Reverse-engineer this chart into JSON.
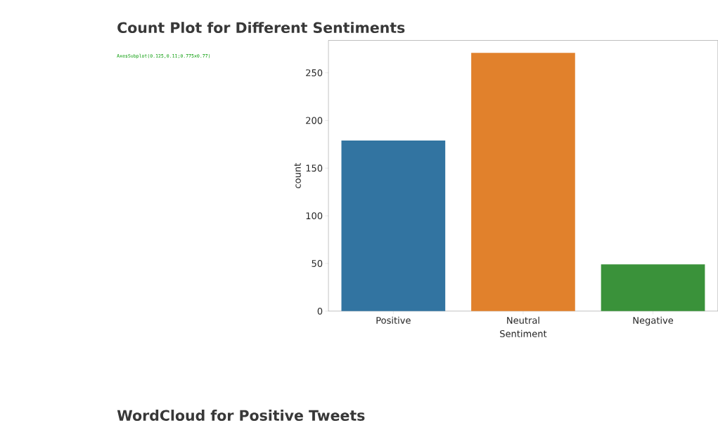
{
  "chart_data": {
    "type": "bar",
    "title": "Count Plot for Different Sentiments",
    "annotations": [
      "AxesSubplot(0.125,0.11;0.775x0.77)",
      "WordCloud for Positive Tweets"
    ],
    "xlabel": "Sentiment",
    "ylabel": "count",
    "categories": [
      "Positive",
      "Neutral",
      "Negative"
    ],
    "values": [
      179,
      271,
      49
    ],
    "colors": [
      "#3274a1",
      "#e1812c",
      "#3a923a"
    ],
    "ylim": [
      0,
      284
    ],
    "yticks": [
      0,
      50,
      100,
      150,
      200,
      250
    ]
  }
}
